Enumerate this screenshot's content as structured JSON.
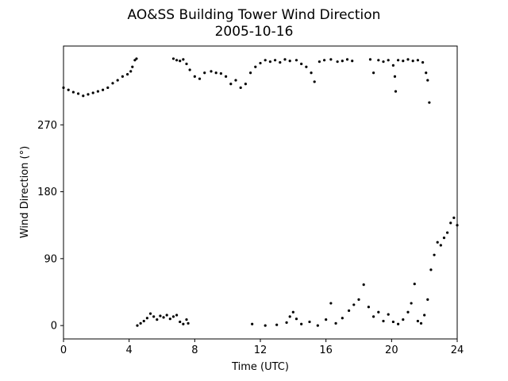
{
  "chart_data": {
    "type": "scatter",
    "title": "AO&SS Building Tower Wind Direction",
    "subtitle": "2005-10-16",
    "xlabel": "Time (UTC)",
    "ylabel": "Wind Direction (°)",
    "xlim": [
      0,
      24
    ],
    "ylim": [
      -18,
      376
    ],
    "xticks": [
      0,
      4,
      8,
      12,
      16,
      20,
      24
    ],
    "yticks": [
      0,
      90,
      180,
      270
    ],
    "grid": false,
    "legend": "none",
    "marker_color": "#000000",
    "series": [
      {
        "points": [
          [
            0.0,
            320
          ],
          [
            0.3,
            317
          ],
          [
            0.6,
            314
          ],
          [
            0.9,
            312
          ],
          [
            1.2,
            309
          ],
          [
            1.5,
            311
          ],
          [
            1.8,
            313
          ],
          [
            2.1,
            315
          ],
          [
            2.4,
            317
          ],
          [
            2.7,
            320
          ],
          [
            3.0,
            326
          ],
          [
            3.3,
            330
          ],
          [
            3.6,
            335
          ],
          [
            3.9,
            338
          ],
          [
            4.1,
            342
          ],
          [
            4.2,
            348
          ],
          [
            4.35,
            357
          ],
          [
            4.45,
            359
          ],
          [
            6.7,
            359
          ],
          [
            6.9,
            357
          ],
          [
            7.1,
            356
          ],
          [
            7.3,
            358
          ],
          [
            7.5,
            352
          ],
          [
            7.7,
            344
          ],
          [
            8.0,
            335
          ],
          [
            8.3,
            332
          ],
          [
            8.6,
            340
          ],
          [
            9.0,
            342
          ],
          [
            9.3,
            340
          ],
          [
            9.6,
            339
          ],
          [
            9.9,
            335
          ],
          [
            10.2,
            325
          ],
          [
            10.5,
            330
          ],
          [
            10.8,
            320
          ],
          [
            11.1,
            325
          ],
          [
            11.4,
            340
          ],
          [
            11.7,
            348
          ],
          [
            12.0,
            353
          ],
          [
            12.3,
            357
          ],
          [
            12.6,
            355
          ],
          [
            12.9,
            357
          ],
          [
            13.2,
            354
          ],
          [
            13.5,
            358
          ],
          [
            13.8,
            356
          ],
          [
            14.2,
            357
          ],
          [
            14.5,
            352
          ],
          [
            14.8,
            348
          ],
          [
            15.1,
            340
          ],
          [
            15.3,
            328
          ],
          [
            15.6,
            355
          ],
          [
            15.9,
            357
          ],
          [
            16.3,
            358
          ],
          [
            16.7,
            355
          ],
          [
            17.0,
            356
          ],
          [
            17.3,
            358
          ],
          [
            17.6,
            356
          ],
          [
            18.7,
            358
          ],
          [
            18.9,
            340
          ],
          [
            19.2,
            357
          ],
          [
            19.5,
            355
          ],
          [
            19.8,
            357
          ],
          [
            20.1,
            350
          ],
          [
            20.2,
            335
          ],
          [
            20.25,
            315
          ],
          [
            20.4,
            357
          ],
          [
            20.7,
            356
          ],
          [
            21.0,
            358
          ],
          [
            21.3,
            356
          ],
          [
            21.6,
            357
          ],
          [
            21.9,
            354
          ],
          [
            22.1,
            340
          ],
          [
            22.2,
            330
          ],
          [
            22.3,
            300
          ],
          [
            4.5,
            0
          ],
          [
            4.7,
            3
          ],
          [
            4.9,
            6
          ],
          [
            5.1,
            10
          ],
          [
            5.3,
            16
          ],
          [
            5.5,
            12
          ],
          [
            5.7,
            8
          ],
          [
            5.9,
            13
          ],
          [
            6.1,
            11
          ],
          [
            6.3,
            14
          ],
          [
            6.5,
            9
          ],
          [
            6.7,
            12
          ],
          [
            6.9,
            14
          ],
          [
            7.1,
            5
          ],
          [
            7.3,
            2
          ],
          [
            7.5,
            8
          ],
          [
            7.6,
            3
          ],
          [
            11.5,
            2
          ],
          [
            12.3,
            0
          ],
          [
            13.0,
            1
          ],
          [
            13.6,
            4
          ],
          [
            13.8,
            12
          ],
          [
            14.0,
            18
          ],
          [
            14.2,
            9
          ],
          [
            14.5,
            2
          ],
          [
            15.0,
            5
          ],
          [
            15.5,
            0
          ],
          [
            16.0,
            8
          ],
          [
            16.3,
            30
          ],
          [
            16.6,
            3
          ],
          [
            17.0,
            10
          ],
          [
            17.4,
            20
          ],
          [
            17.7,
            28
          ],
          [
            18.0,
            35
          ],
          [
            18.3,
            55
          ],
          [
            18.6,
            25
          ],
          [
            18.9,
            12
          ],
          [
            19.2,
            18
          ],
          [
            19.5,
            6
          ],
          [
            19.8,
            15
          ],
          [
            20.1,
            5
          ],
          [
            20.4,
            2
          ],
          [
            20.7,
            8
          ],
          [
            21.0,
            18
          ],
          [
            21.2,
            30
          ],
          [
            21.4,
            56
          ],
          [
            21.6,
            6
          ],
          [
            21.8,
            3
          ],
          [
            22.0,
            14
          ],
          [
            22.2,
            35
          ],
          [
            22.4,
            75
          ],
          [
            22.6,
            95
          ],
          [
            22.8,
            112
          ],
          [
            23.0,
            108
          ],
          [
            23.2,
            118
          ],
          [
            23.4,
            125
          ],
          [
            23.6,
            138
          ],
          [
            23.8,
            145
          ],
          [
            24.0,
            135
          ]
        ]
      }
    ]
  }
}
